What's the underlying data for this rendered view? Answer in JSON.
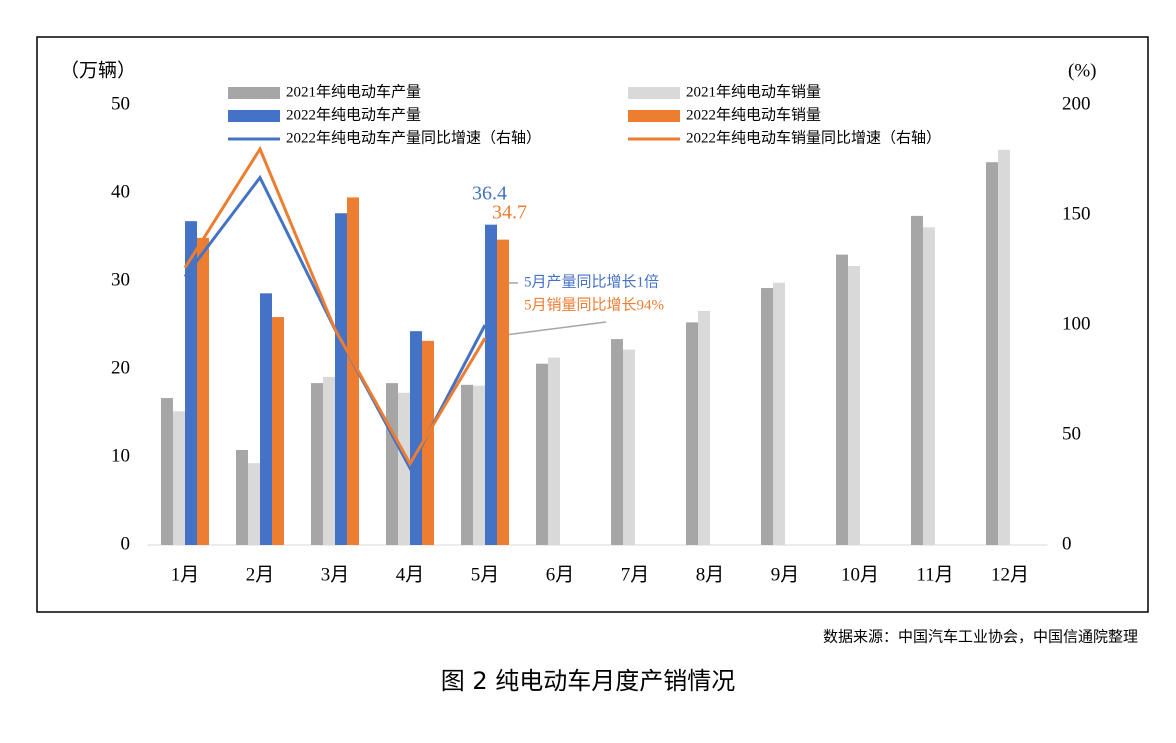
{
  "chart_data": {
    "type": "bar",
    "y_label": "（万辆）",
    "y2_label": "(%)",
    "categories": [
      "1月",
      "2月",
      "3月",
      "4月",
      "5月",
      "6月",
      "7月",
      "8月",
      "9月",
      "10月",
      "11月",
      "12月"
    ],
    "series": [
      {
        "name": "2021年纯电动车产量",
        "type": "bar",
        "color": "#a6a6a6",
        "values": [
          16.7,
          10.8,
          18.4,
          18.4,
          18.2,
          20.6,
          23.4,
          25.3,
          29.2,
          33.0,
          37.4,
          43.5
        ]
      },
      {
        "name": "2021年纯电动车销量",
        "type": "bar",
        "color": "#d9d9d9",
        "values": [
          15.2,
          9.3,
          19.1,
          17.3,
          18.1,
          21.3,
          22.2,
          26.6,
          29.8,
          31.7,
          36.1,
          44.9
        ]
      },
      {
        "name": "2022年纯电动车产量",
        "type": "bar",
        "color": "#4472c4",
        "values": [
          36.8,
          28.6,
          37.7,
          24.3,
          36.4,
          null,
          null,
          null,
          null,
          null,
          null,
          null
        ]
      },
      {
        "name": "2022年纯电动车销量",
        "type": "bar",
        "color": "#ed7d31",
        "values": [
          34.9,
          25.9,
          39.5,
          23.2,
          34.7,
          null,
          null,
          null,
          null,
          null,
          null,
          null
        ]
      },
      {
        "name": "2022年纯电动车产量同比增速（右轴）",
        "type": "line",
        "axis": "y2",
        "color": "#4472c4",
        "values": [
          122,
          167,
          98,
          35,
          100,
          null,
          null,
          null,
          null,
          null,
          null,
          null
        ]
      },
      {
        "name": "2022年纯电动车销量同比增速（右轴）",
        "type": "line",
        "axis": "y2",
        "color": "#ed7d31",
        "values": [
          126,
          180,
          98,
          37,
          94,
          null,
          null,
          null,
          null,
          null,
          null,
          null
        ]
      }
    ],
    "ylim": [
      0,
      50
    ],
    "yticks": [
      0,
      10,
      20,
      30,
      40,
      50
    ],
    "y2lim": [
      0,
      200
    ],
    "y2ticks": [
      0,
      50,
      100,
      150,
      200
    ],
    "annotations": [
      "5月产量同比增长1倍",
      "5月销量同比增长94%"
    ],
    "source": "数据来源：中国汽车工业协会，中国信通院整理",
    "caption": "图 2  纯电动车月度产销情况"
  }
}
